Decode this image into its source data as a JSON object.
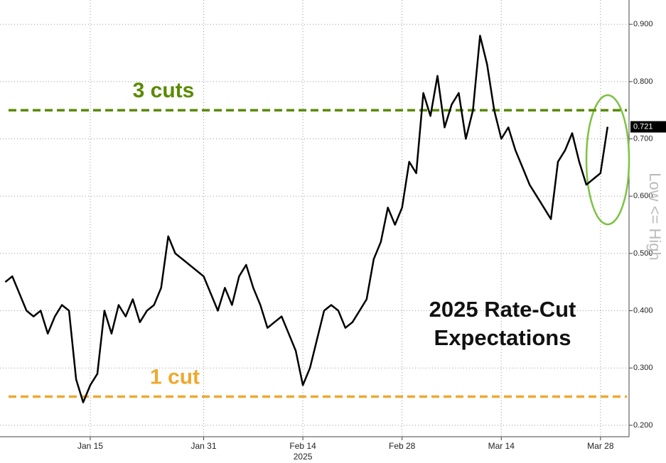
{
  "chart_data": {
    "type": "line",
    "title_lines": [
      "2025 Rate-Cut",
      "Expectations"
    ],
    "y_axis_label": "Low <= High",
    "x_axis_sublabel": "2025",
    "categories": [
      null,
      null,
      null,
      null,
      null,
      null,
      null,
      null,
      null,
      null,
      null,
      null,
      "Jan 15",
      null,
      null,
      null,
      null,
      null,
      null,
      null,
      null,
      null,
      null,
      null,
      null,
      null,
      null,
      null,
      "Jan 31",
      null,
      null,
      null,
      null,
      null,
      null,
      null,
      null,
      null,
      null,
      null,
      null,
      null,
      "Feb 14",
      null,
      null,
      null,
      null,
      null,
      null,
      null,
      null,
      null,
      null,
      null,
      null,
      null,
      "Feb 28",
      null,
      null,
      null,
      null,
      null,
      null,
      null,
      null,
      null,
      null,
      null,
      null,
      null,
      "Mar 14",
      null,
      null,
      null,
      null,
      null,
      null,
      null,
      null,
      null,
      null,
      null,
      null,
      null,
      "Mar 28",
      null
    ],
    "series": [
      {
        "color": "#000000",
        "values": [
          0.45,
          0.46,
          0.43,
          0.4,
          0.39,
          0.4,
          0.36,
          0.39,
          0.41,
          0.4,
          0.28,
          0.24,
          0.27,
          0.29,
          0.4,
          0.36,
          0.41,
          0.39,
          0.42,
          0.38,
          0.4,
          0.41,
          0.44,
          0.53,
          0.5,
          0.49,
          0.48,
          0.47,
          0.46,
          0.43,
          0.4,
          0.44,
          0.41,
          0.46,
          0.48,
          0.44,
          0.41,
          0.37,
          0.38,
          0.39,
          0.36,
          0.33,
          0.27,
          0.3,
          0.35,
          0.4,
          0.41,
          0.4,
          0.37,
          0.38,
          0.4,
          0.42,
          0.49,
          0.52,
          0.58,
          0.55,
          0.58,
          0.66,
          0.64,
          0.78,
          0.74,
          0.81,
          0.72,
          0.76,
          0.78,
          0.7,
          0.75,
          0.88,
          0.83,
          0.75,
          0.7,
          0.72,
          0.68,
          0.65,
          0.62,
          0.6,
          0.58,
          0.56,
          0.66,
          0.68,
          0.71,
          0.66,
          0.62,
          0.63,
          0.64,
          0.721
        ]
      }
    ],
    "last_value_label": "0.721",
    "reference_lines": [
      {
        "label": "3 cuts",
        "value": 0.75,
        "color": "#5a8a00"
      },
      {
        "label": "1 cut",
        "value": 0.25,
        "color": "#f0a830"
      }
    ],
    "ylim": [
      0.18,
      0.93
    ],
    "yticks": [
      {
        "value": 0.2,
        "label": "0.200"
      },
      {
        "value": 0.3,
        "label": "0.300"
      },
      {
        "value": 0.4,
        "label": "0.400"
      },
      {
        "value": 0.5,
        "label": "0.500"
      },
      {
        "value": 0.6,
        "label": "0.600"
      },
      {
        "value": 0.7,
        "label": "0.700"
      },
      {
        "value": 0.8,
        "label": "0.800"
      },
      {
        "value": 0.9,
        "label": "0.900"
      }
    ],
    "grid": true
  }
}
